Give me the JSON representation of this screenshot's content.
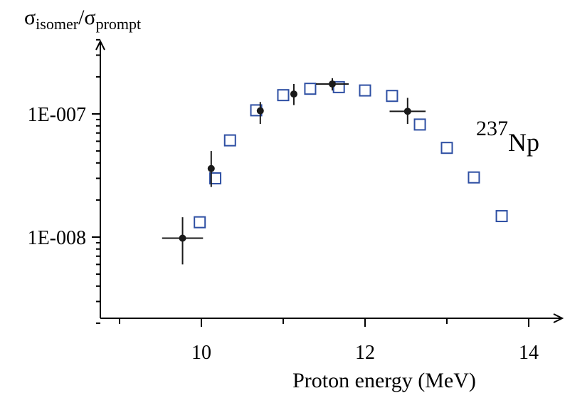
{
  "chart_data": {
    "type": "scatter",
    "title": "",
    "xlabel": "Proton energy (MeV)",
    "ylabel": {
      "base": "σ",
      "num_sub": "isomer",
      "slash": "/",
      "den_sub": "prompt"
    },
    "annotation": {
      "sup": "237",
      "text": "Np"
    },
    "x_axis": {
      "min": 9.0,
      "max": 14.5,
      "ticks": [
        10,
        12,
        14
      ],
      "tick_labels": [
        "10",
        "12",
        "14"
      ]
    },
    "y_axis": {
      "scale": "log",
      "min": 2e-09,
      "max": 4.5e-07,
      "ticks": [
        1e-08,
        1e-07
      ],
      "tick_labels": [
        "1E-008",
        "1E-007"
      ]
    },
    "grid": false,
    "legend": "none",
    "series": [
      {
        "marker": "filled-circle",
        "color": "#1a1a1a",
        "points": [
          {
            "x": 9.77,
            "y": 9.8e-09,
            "xerr": 0.25,
            "ylo": 6e-09,
            "yhi": 1.45e-08
          },
          {
            "x": 10.12,
            "y": 3.6e-08,
            "xerr": 0.0,
            "ylo": 2.55e-08,
            "yhi": 5e-08
          },
          {
            "x": 10.72,
            "y": 1.06e-07,
            "xerr": 0.0,
            "ylo": 8.3e-08,
            "yhi": 1.25e-07
          },
          {
            "x": 11.13,
            "y": 1.45e-07,
            "xerr": 0.0,
            "ylo": 1.18e-07,
            "yhi": 1.75e-07
          },
          {
            "x": 11.6,
            "y": 1.75e-07,
            "xerr": 0.2,
            "ylo": 1.55e-07,
            "yhi": 1.95e-07
          },
          {
            "x": 12.52,
            "y": 1.05e-07,
            "xerr": 0.22,
            "ylo": 8.3e-08,
            "yhi": 1.35e-07
          }
        ]
      },
      {
        "marker": "open-square",
        "color": "#2e4fa3",
        "points": [
          {
            "x": 9.98,
            "y": 1.32e-08
          },
          {
            "x": 10.17,
            "y": 3e-08
          },
          {
            "x": 10.35,
            "y": 6.1e-08
          },
          {
            "x": 10.67,
            "y": 1.07e-07
          },
          {
            "x": 11.0,
            "y": 1.42e-07
          },
          {
            "x": 11.33,
            "y": 1.6e-07
          },
          {
            "x": 11.68,
            "y": 1.65e-07
          },
          {
            "x": 12.0,
            "y": 1.55e-07
          },
          {
            "x": 12.33,
            "y": 1.4e-07
          },
          {
            "x": 12.67,
            "y": 8.2e-08
          },
          {
            "x": 13.0,
            "y": 5.3e-08
          },
          {
            "x": 13.33,
            "y": 3.05e-08
          },
          {
            "x": 13.67,
            "y": 1.48e-08
          }
        ]
      }
    ]
  }
}
